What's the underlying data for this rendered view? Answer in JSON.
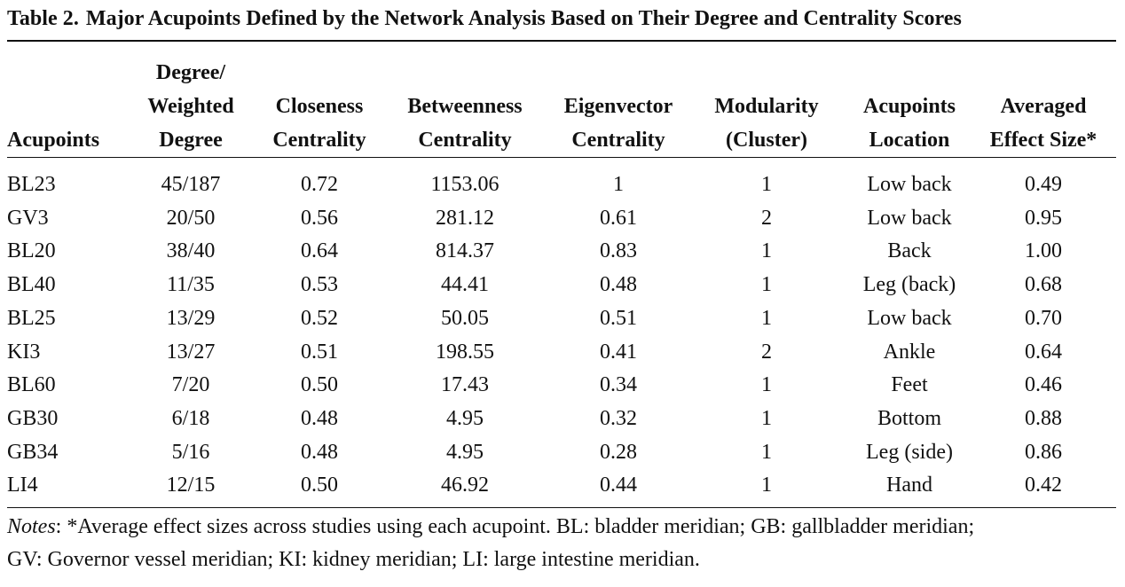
{
  "caption": {
    "number": "Table 2.",
    "title": "Major Acupoints Defined by the Network Analysis Based on Their Degree and Centrality Scores"
  },
  "headers": [
    {
      "lines": [
        "Acupoints"
      ]
    },
    {
      "lines": [
        "Degree/",
        "Weighted",
        "Degree"
      ]
    },
    {
      "lines": [
        "Closeness",
        "Centrality"
      ]
    },
    {
      "lines": [
        "Betweenness",
        "Centrality"
      ]
    },
    {
      "lines": [
        "Eigenvector",
        "Centrality"
      ]
    },
    {
      "lines": [
        "Modularity",
        "(Cluster)"
      ]
    },
    {
      "lines": [
        "Acupoints",
        "Location"
      ]
    },
    {
      "lines": [
        "Averaged",
        "Effect Size*"
      ]
    }
  ],
  "rows": [
    [
      "BL23",
      "45/187",
      "0.72",
      "1153.06",
      "1",
      "1",
      "Low back",
      "0.49"
    ],
    [
      "GV3",
      "20/50",
      "0.56",
      "281.12",
      "0.61",
      "2",
      "Low back",
      "0.95"
    ],
    [
      "BL20",
      "38/40",
      "0.64",
      "814.37",
      "0.83",
      "1",
      "Back",
      "1.00"
    ],
    [
      "BL40",
      "11/35",
      "0.53",
      "44.41",
      "0.48",
      "1",
      "Leg (back)",
      "0.68"
    ],
    [
      "BL25",
      "13/29",
      "0.52",
      "50.05",
      "0.51",
      "1",
      "Low back",
      "0.70"
    ],
    [
      "KI3",
      "13/27",
      "0.51",
      "198.55",
      "0.41",
      "2",
      "Ankle",
      "0.64"
    ],
    [
      "BL60",
      "7/20",
      "0.50",
      "17.43",
      "0.34",
      "1",
      "Feet",
      "0.46"
    ],
    [
      "GB30",
      "6/18",
      "0.48",
      "4.95",
      "0.32",
      "1",
      "Bottom",
      "0.88"
    ],
    [
      "GB34",
      "5/16",
      "0.48",
      "4.95",
      "0.28",
      "1",
      "Leg (side)",
      "0.86"
    ],
    [
      "LI4",
      "12/15",
      "0.50",
      "46.92",
      "0.44",
      "1",
      "Hand",
      "0.42"
    ]
  ],
  "notes": {
    "label": "Notes",
    "line1": ": *Average effect sizes across studies using each acupoint. BL: bladder meridian; GB: gallbladder meridian;",
    "line2": "GV: Governor vessel meridian; KI: kidney meridian; LI: large intestine meridian."
  }
}
